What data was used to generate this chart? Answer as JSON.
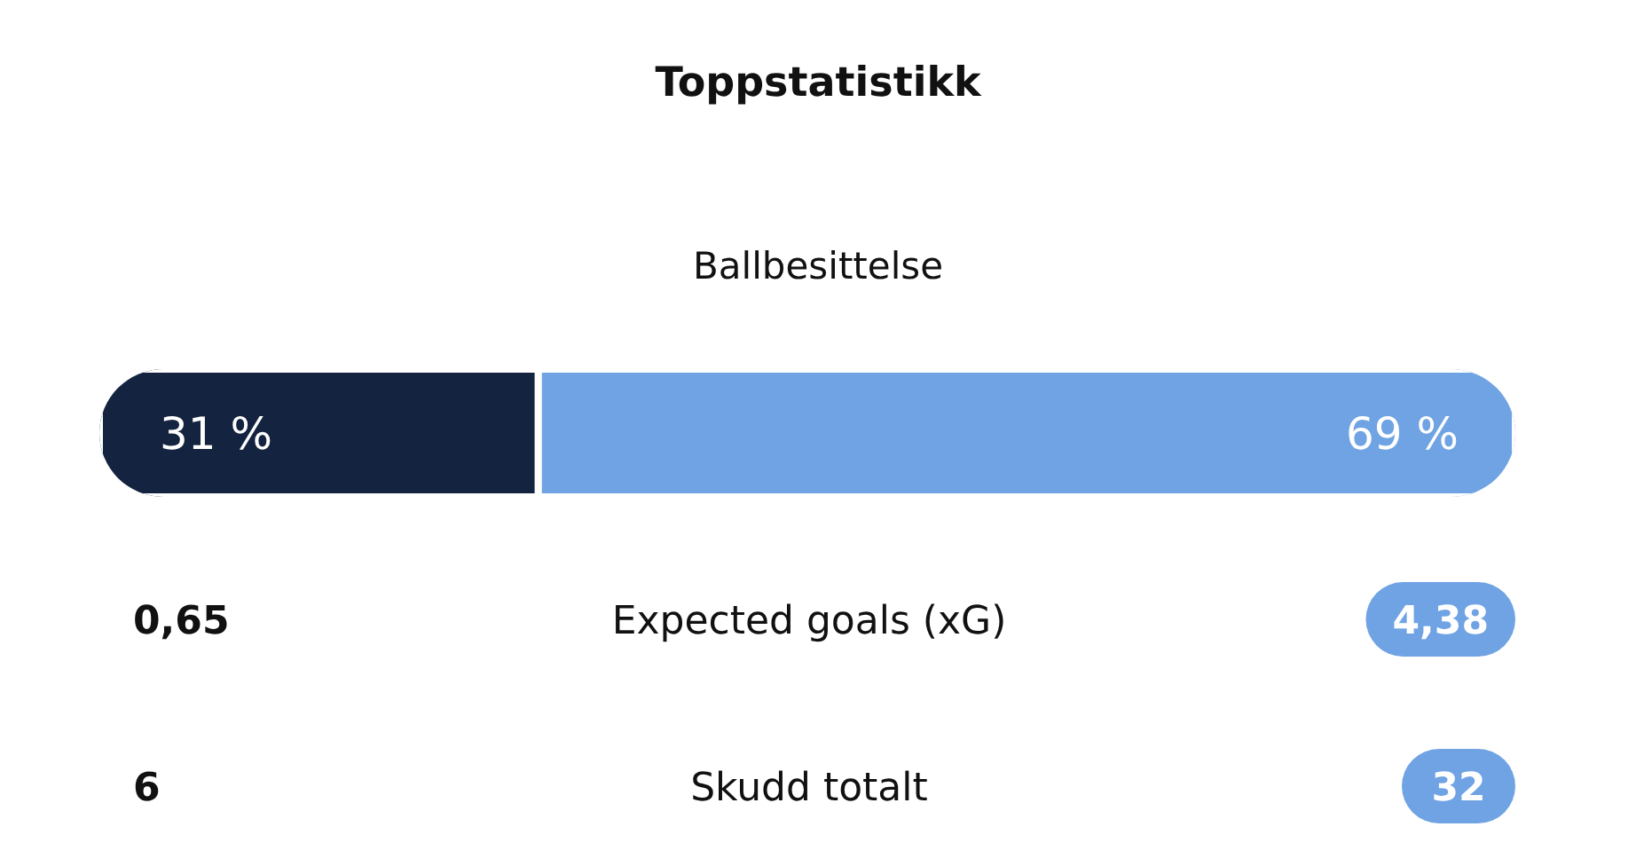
{
  "chart_data": [
    {
      "type": "bar",
      "title": "Toppstatistikk",
      "subtitle": "Ballbesittelse",
      "orientation": "horizontal",
      "stacked": true,
      "categories": [
        null
      ],
      "xlim": [
        0,
        100
      ],
      "tick_labels": false,
      "series": [
        {
          "color": "#14233f",
          "values": [
            31
          ],
          "value_labels": [
            "31 %"
          ]
        },
        {
          "color": "#6fa3e3",
          "values": [
            69
          ],
          "value_labels": [
            "69 %"
          ]
        }
      ]
    },
    {
      "type": "other",
      "annotations": [
        "0,65",
        "Expected goals (xG)",
        "4,38",
        "6",
        "Skudd totalt",
        "32"
      ]
    }
  ]
}
